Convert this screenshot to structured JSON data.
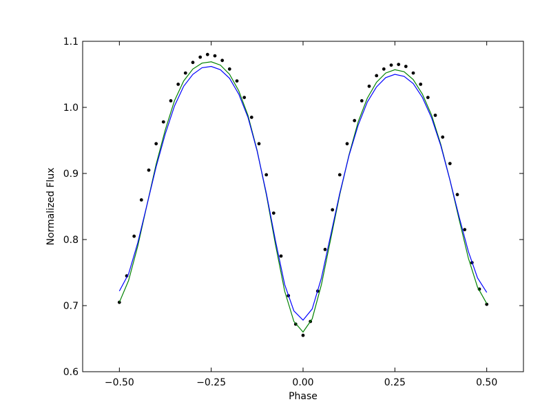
{
  "chart_data": {
    "type": "scatter",
    "title": "",
    "xlabel": "Phase",
    "ylabel": "Normalized Flux",
    "xlim": [
      -0.6,
      0.6
    ],
    "ylim": [
      0.6,
      1.1
    ],
    "xticks": [
      -0.5,
      -0.25,
      0.0,
      0.25,
      0.5
    ],
    "xtick_labels": [
      "−0.50",
      "−0.25",
      "0.00",
      "0.25",
      "0.50"
    ],
    "yticks": [
      0.6,
      0.7,
      0.8,
      0.9,
      1.0,
      1.1
    ],
    "ytick_labels": [
      "0.6",
      "0.7",
      "0.8",
      "0.9",
      "1.0",
      "1.1"
    ],
    "grid": false,
    "legend": "none",
    "series": [
      {
        "kind": "scatter",
        "color": "#000000",
        "points": [
          [
            -0.5,
            0.705
          ],
          [
            -0.48,
            0.745
          ],
          [
            -0.46,
            0.805
          ],
          [
            -0.44,
            0.86
          ],
          [
            -0.42,
            0.905
          ],
          [
            -0.4,
            0.945
          ],
          [
            -0.38,
            0.978
          ],
          [
            -0.36,
            1.01
          ],
          [
            -0.34,
            1.035
          ],
          [
            -0.32,
            1.052
          ],
          [
            -0.3,
            1.068
          ],
          [
            -0.28,
            1.076
          ],
          [
            -0.26,
            1.08
          ],
          [
            -0.24,
            1.078
          ],
          [
            -0.22,
            1.071
          ],
          [
            -0.2,
            1.058
          ],
          [
            -0.18,
            1.04
          ],
          [
            -0.16,
            1.015
          ],
          [
            -0.14,
            0.985
          ],
          [
            -0.12,
            0.945
          ],
          [
            -0.1,
            0.898
          ],
          [
            -0.08,
            0.84
          ],
          [
            -0.06,
            0.775
          ],
          [
            -0.04,
            0.715
          ],
          [
            -0.02,
            0.672
          ],
          [
            0.0,
            0.655
          ],
          [
            0.02,
            0.676
          ],
          [
            0.04,
            0.722
          ],
          [
            0.06,
            0.785
          ],
          [
            0.08,
            0.845
          ],
          [
            0.1,
            0.898
          ],
          [
            0.12,
            0.945
          ],
          [
            0.14,
            0.98
          ],
          [
            0.16,
            1.01
          ],
          [
            0.18,
            1.032
          ],
          [
            0.2,
            1.048
          ],
          [
            0.22,
            1.058
          ],
          [
            0.24,
            1.064
          ],
          [
            0.26,
            1.065
          ],
          [
            0.28,
            1.062
          ],
          [
            0.3,
            1.052
          ],
          [
            0.32,
            1.035
          ],
          [
            0.34,
            1.015
          ],
          [
            0.36,
            0.988
          ],
          [
            0.38,
            0.955
          ],
          [
            0.4,
            0.915
          ],
          [
            0.42,
            0.868
          ],
          [
            0.44,
            0.815
          ],
          [
            0.46,
            0.765
          ],
          [
            0.48,
            0.725
          ],
          [
            0.5,
            0.702
          ]
        ]
      },
      {
        "kind": "line",
        "color": "#008000",
        "points": [
          [
            -0.5,
            0.705
          ],
          [
            -0.475,
            0.738
          ],
          [
            -0.45,
            0.79
          ],
          [
            -0.425,
            0.852
          ],
          [
            -0.4,
            0.914
          ],
          [
            -0.375,
            0.966
          ],
          [
            -0.35,
            1.01
          ],
          [
            -0.325,
            1.04
          ],
          [
            -0.3,
            1.058
          ],
          [
            -0.275,
            1.067
          ],
          [
            -0.25,
            1.069
          ],
          [
            -0.225,
            1.064
          ],
          [
            -0.2,
            1.05
          ],
          [
            -0.175,
            1.025
          ],
          [
            -0.15,
            0.988
          ],
          [
            -0.125,
            0.935
          ],
          [
            -0.1,
            0.868
          ],
          [
            -0.075,
            0.792
          ],
          [
            -0.05,
            0.722
          ],
          [
            -0.025,
            0.676
          ],
          [
            0.0,
            0.66
          ],
          [
            0.025,
            0.68
          ],
          [
            0.05,
            0.732
          ],
          [
            0.075,
            0.8
          ],
          [
            0.1,
            0.868
          ],
          [
            0.125,
            0.928
          ],
          [
            0.15,
            0.978
          ],
          [
            0.175,
            1.014
          ],
          [
            0.2,
            1.038
          ],
          [
            0.225,
            1.052
          ],
          [
            0.25,
            1.057
          ],
          [
            0.275,
            1.054
          ],
          [
            0.3,
            1.042
          ],
          [
            0.325,
            1.02
          ],
          [
            0.35,
            0.988
          ],
          [
            0.375,
            0.944
          ],
          [
            0.4,
            0.89
          ],
          [
            0.425,
            0.83
          ],
          [
            0.45,
            0.772
          ],
          [
            0.475,
            0.728
          ],
          [
            0.5,
            0.703
          ]
        ]
      },
      {
        "kind": "line",
        "color": "#0000ff",
        "points": [
          [
            -0.5,
            0.722
          ],
          [
            -0.475,
            0.748
          ],
          [
            -0.45,
            0.795
          ],
          [
            -0.425,
            0.852
          ],
          [
            -0.4,
            0.91
          ],
          [
            -0.375,
            0.96
          ],
          [
            -0.35,
            1.002
          ],
          [
            -0.325,
            1.032
          ],
          [
            -0.3,
            1.05
          ],
          [
            -0.275,
            1.06
          ],
          [
            -0.25,
            1.062
          ],
          [
            -0.225,
            1.057
          ],
          [
            -0.2,
            1.044
          ],
          [
            -0.175,
            1.02
          ],
          [
            -0.15,
            0.985
          ],
          [
            -0.125,
            0.934
          ],
          [
            -0.1,
            0.87
          ],
          [
            -0.075,
            0.798
          ],
          [
            -0.05,
            0.732
          ],
          [
            -0.025,
            0.692
          ],
          [
            0.0,
            0.678
          ],
          [
            0.025,
            0.695
          ],
          [
            0.05,
            0.742
          ],
          [
            0.075,
            0.806
          ],
          [
            0.1,
            0.87
          ],
          [
            0.125,
            0.927
          ],
          [
            0.15,
            0.973
          ],
          [
            0.175,
            1.008
          ],
          [
            0.2,
            1.031
          ],
          [
            0.225,
            1.045
          ],
          [
            0.25,
            1.05
          ],
          [
            0.275,
            1.047
          ],
          [
            0.3,
            1.036
          ],
          [
            0.325,
            1.015
          ],
          [
            0.35,
            0.984
          ],
          [
            0.375,
            0.942
          ],
          [
            0.4,
            0.89
          ],
          [
            0.425,
            0.834
          ],
          [
            0.45,
            0.782
          ],
          [
            0.475,
            0.742
          ],
          [
            0.5,
            0.72
          ]
        ]
      }
    ]
  }
}
